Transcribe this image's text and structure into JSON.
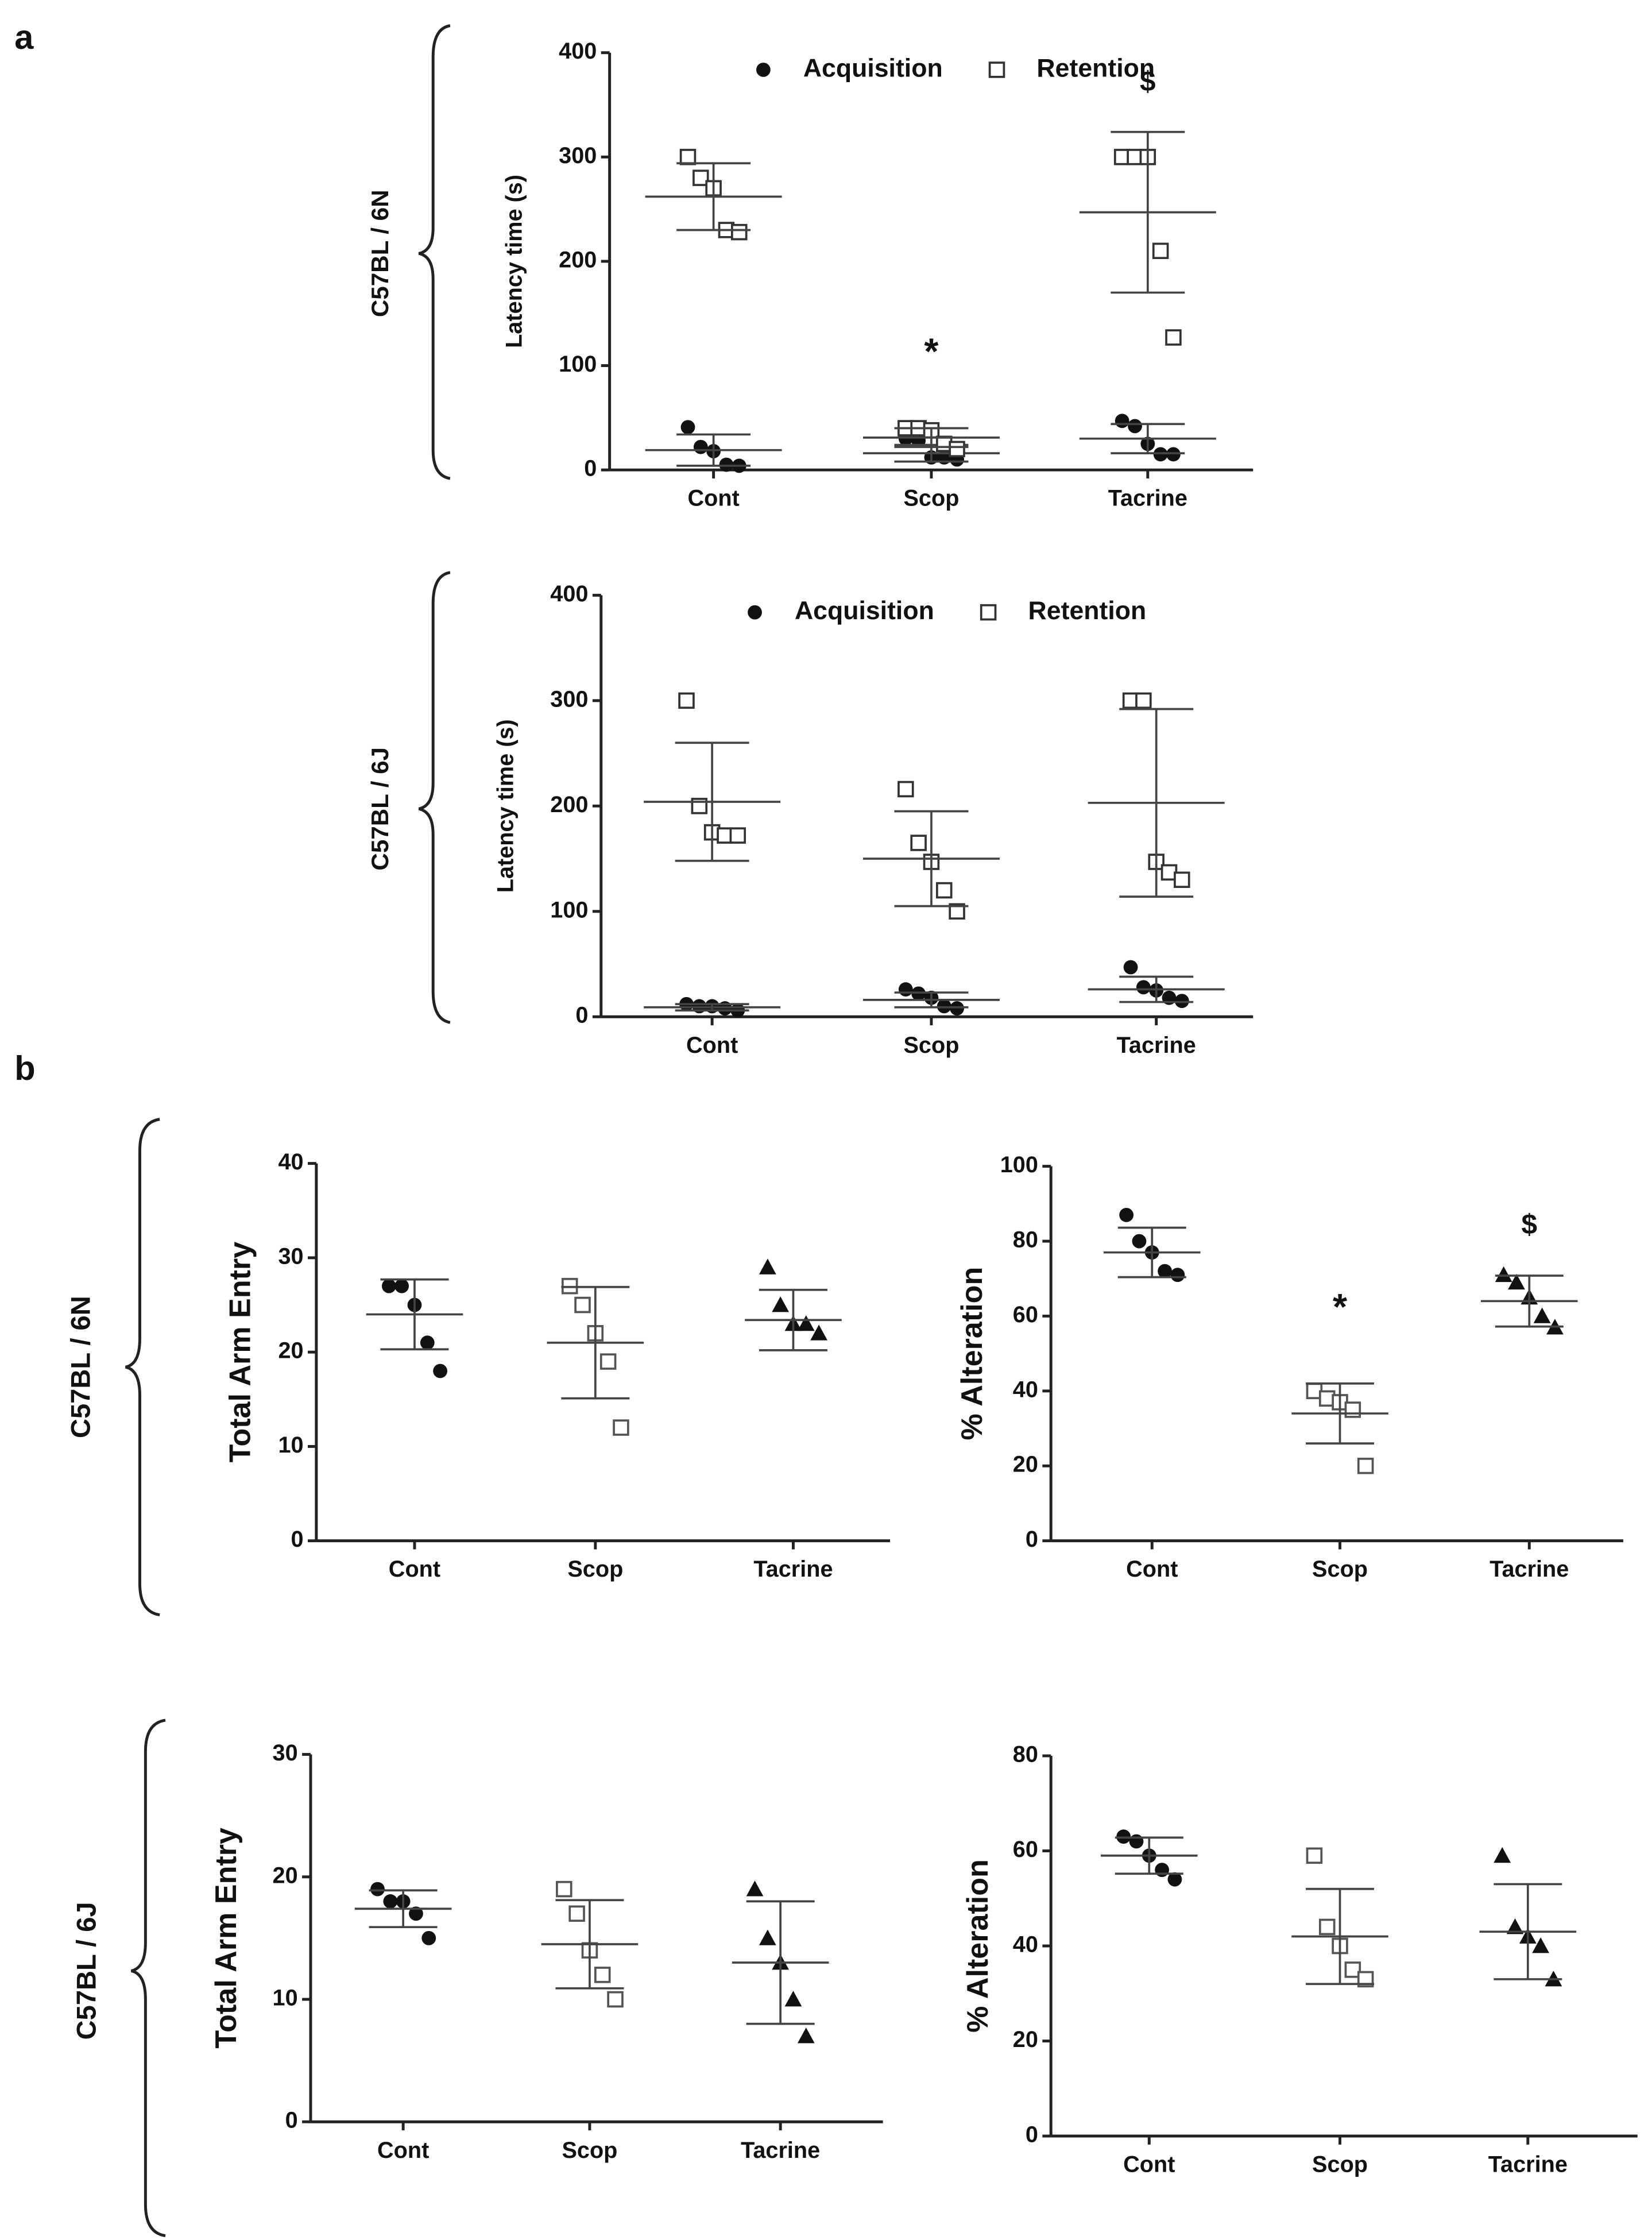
{
  "panel_labels": [
    "a",
    "b"
  ],
  "strain_labels": [
    "C57BL / 6N",
    "C57BL / 6J",
    "C57BL / 6N",
    "C57BL / 6J"
  ],
  "chart_data": [
    {
      "type": "dot",
      "ylabel": "Latency time (s)",
      "categories": [
        "Cont",
        "Scop",
        "Tacrine"
      ],
      "ylim": [
        0,
        400
      ],
      "yticks": [
        0,
        100,
        200,
        300,
        400
      ],
      "legend": "top",
      "series": [
        {
          "name": "Acquisition",
          "marker": "circle",
          "color": "#111",
          "points": [
            [
              41,
              22,
              18,
              5,
              4
            ],
            [
              30,
              28,
              12,
              12,
              10
            ],
            [
              47,
              42,
              25,
              15,
              15
            ]
          ],
          "means": [
            19,
            16,
            30
          ],
          "errors": [
            15,
            8,
            14
          ]
        },
        {
          "name": "Retention",
          "marker": "square",
          "color": "#333",
          "points": [
            [
              300,
              280,
              270,
              230,
              228
            ],
            [
              40,
              40,
              38,
              25,
              20
            ],
            [
              300,
              300,
              300,
              210,
              127
            ]
          ],
          "means": [
            262,
            31,
            247
          ],
          "errors": [
            32,
            9,
            77
          ]
        }
      ],
      "annotations": [
        {
          "text": "*",
          "category": "Scop"
        },
        {
          "text": "$",
          "category": "Tacrine"
        }
      ]
    },
    {
      "type": "dot",
      "ylabel": "Latency time (s)",
      "categories": [
        "Cont",
        "Scop",
        "Tacrine"
      ],
      "ylim": [
        0,
        400
      ],
      "yticks": [
        0,
        100,
        200,
        300,
        400
      ],
      "legend": "top",
      "series": [
        {
          "name": "Acquisition",
          "marker": "circle",
          "color": "#111",
          "points": [
            [
              12,
              10,
              10,
              8,
              6
            ],
            [
              26,
              22,
              18,
              10,
              8
            ],
            [
              47,
              28,
              25,
              18,
              15
            ]
          ],
          "means": [
            9,
            16,
            26
          ],
          "errors": [
            3,
            7,
            12
          ]
        },
        {
          "name": "Retention",
          "marker": "square",
          "color": "#333",
          "points": [
            [
              300,
              200,
              175,
              172,
              172
            ],
            [
              216,
              165,
              147,
              120,
              100
            ],
            [
              300,
              300,
              147,
              137,
              130
            ]
          ],
          "means": [
            204,
            150,
            203
          ],
          "errors": [
            56,
            45,
            89
          ]
        }
      ],
      "annotations": []
    },
    {
      "type": "dot",
      "ylabel": "Total Arm Entry",
      "categories": [
        "Cont",
        "Scop",
        "Tacrine"
      ],
      "ylim": [
        0,
        40
      ],
      "yticks": [
        0,
        10,
        20,
        30,
        40
      ],
      "series": [
        {
          "marker": "circle",
          "color": "#111",
          "points": [
            [
              27,
              27,
              25,
              21,
              18
            ]
          ],
          "means": [
            24
          ],
          "errors": [
            3.7
          ]
        },
        {
          "marker": "square",
          "color": "#555",
          "points": [
            [
              27,
              25,
              22,
              19,
              12
            ]
          ],
          "means": [
            21
          ],
          "errors": [
            5.9
          ]
        },
        {
          "marker": "triangle",
          "color": "#111",
          "points": [
            [
              29,
              25,
              23,
              23,
              22
            ]
          ],
          "means": [
            23.4
          ],
          "errors": [
            3.2
          ]
        }
      ],
      "annotations": []
    },
    {
      "type": "dot",
      "ylabel": "% Alteration",
      "categories": [
        "Cont",
        "Scop",
        "Tacrine"
      ],
      "ylim": [
        0,
        100
      ],
      "yticks": [
        0,
        20,
        40,
        60,
        80,
        100
      ],
      "series": [
        {
          "marker": "circle",
          "color": "#111",
          "points": [
            [
              87,
              80,
              77,
              72,
              71
            ]
          ],
          "means": [
            77
          ],
          "errors": [
            6.6
          ]
        },
        {
          "marker": "square",
          "color": "#555",
          "points": [
            [
              40,
              38,
              37,
              35,
              20
            ]
          ],
          "means": [
            34
          ],
          "errors": [
            8
          ]
        },
        {
          "marker": "triangle",
          "color": "#111",
          "points": [
            [
              71,
              69,
              65,
              60,
              57
            ]
          ],
          "means": [
            64
          ],
          "errors": [
            6.8
          ]
        }
      ],
      "annotations": [
        {
          "text": "*",
          "category": "Scop"
        },
        {
          "text": "$",
          "category": "Tacrine"
        }
      ]
    },
    {
      "type": "dot",
      "ylabel": "Total Arm Entry",
      "categories": [
        "Cont",
        "Scop",
        "Tacrine"
      ],
      "ylim": [
        0,
        30
      ],
      "yticks": [
        0,
        10,
        20,
        30
      ],
      "series": [
        {
          "marker": "circle",
          "color": "#111",
          "points": [
            [
              19,
              18,
              18,
              17,
              15
            ]
          ],
          "means": [
            17.4
          ],
          "errors": [
            1.5
          ]
        },
        {
          "marker": "square",
          "color": "#555",
          "points": [
            [
              19,
              17,
              14,
              12,
              10
            ]
          ],
          "means": [
            14.5
          ],
          "errors": [
            3.6
          ]
        },
        {
          "marker": "triangle",
          "color": "#111",
          "points": [
            [
              19,
              15,
              13,
              10,
              7
            ]
          ],
          "means": [
            13
          ],
          "errors": [
            5
          ]
        }
      ],
      "annotations": []
    },
    {
      "type": "dot",
      "ylabel": "% Alteration",
      "categories": [
        "Cont",
        "Scop",
        "Tacrine"
      ],
      "ylim": [
        0,
        80
      ],
      "yticks": [
        0,
        20,
        40,
        60,
        80
      ],
      "series": [
        {
          "marker": "circle",
          "color": "#111",
          "points": [
            [
              63,
              62,
              59,
              56,
              54
            ]
          ],
          "means": [
            59
          ],
          "errors": [
            3.8
          ]
        },
        {
          "marker": "square",
          "color": "#555",
          "points": [
            [
              59,
              44,
              40,
              35,
              33
            ]
          ],
          "means": [
            42
          ],
          "errors": [
            10
          ]
        },
        {
          "marker": "triangle",
          "color": "#111",
          "points": [
            [
              59,
              44,
              42,
              40,
              33
            ]
          ],
          "means": [
            43
          ],
          "errors": [
            10
          ]
        }
      ],
      "annotations": []
    }
  ]
}
